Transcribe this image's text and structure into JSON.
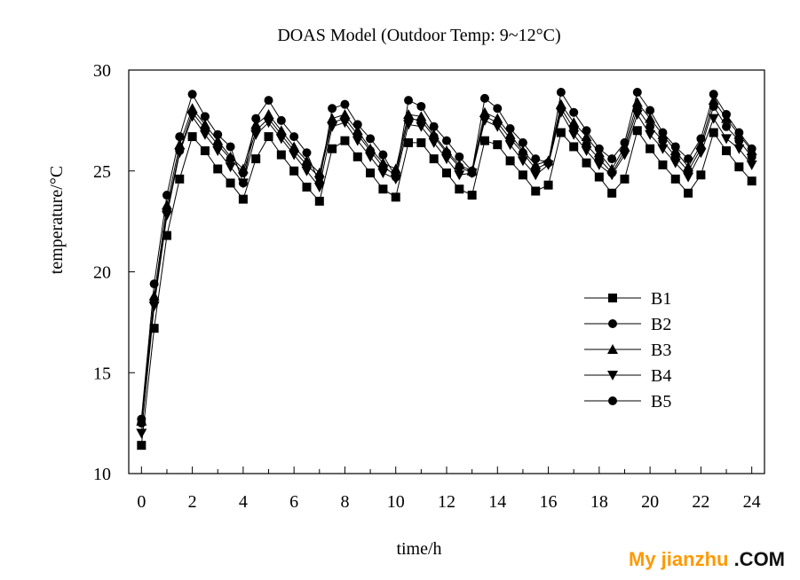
{
  "chart_data": {
    "type": "line",
    "title": "DOAS Model (Outdoor Temp: 9~12°C)",
    "xlabel": "time/h",
    "ylabel": "temperature/°C",
    "xlim": [
      -0.5,
      24.5
    ],
    "ylim": [
      10,
      30
    ],
    "xticks": [
      0,
      2,
      4,
      6,
      8,
      10,
      12,
      14,
      16,
      18,
      20,
      22,
      24
    ],
    "yticks": [
      10,
      15,
      20,
      25,
      30
    ],
    "legend_position": "center-right",
    "x": [
      0,
      0.5,
      1,
      1.5,
      2,
      2.5,
      3,
      3.5,
      4,
      4.5,
      5,
      5.5,
      6,
      6.5,
      7,
      7.5,
      8,
      8.5,
      9,
      9.5,
      10,
      10.5,
      11,
      11.5,
      12,
      12.5,
      13,
      13.5,
      14,
      14.5,
      15,
      15.5,
      16,
      16.5,
      17,
      17.5,
      18,
      18.5,
      19,
      19.5,
      20,
      20.5,
      21,
      21.5,
      22,
      22.5,
      23,
      23.5,
      24
    ],
    "series": [
      {
        "name": "B1",
        "marker": "square",
        "values": [
          11.4,
          17.2,
          21.8,
          24.6,
          26.7,
          26.0,
          25.1,
          24.4,
          23.6,
          25.6,
          26.7,
          25.8,
          25.0,
          24.2,
          23.5,
          26.1,
          26.5,
          25.7,
          24.9,
          24.1,
          23.7,
          26.4,
          26.4,
          25.6,
          24.9,
          24.1,
          23.8,
          26.5,
          26.3,
          25.5,
          24.8,
          24.0,
          24.3,
          26.9,
          26.2,
          25.4,
          24.7,
          23.9,
          24.6,
          27.0,
          26.1,
          25.3,
          24.6,
          23.9,
          24.8,
          26.9,
          26.0,
          25.2,
          24.5
        ]
      },
      {
        "name": "B2",
        "marker": "circle",
        "values": [
          12.7,
          19.4,
          23.8,
          26.7,
          28.8,
          27.7,
          26.8,
          26.2,
          24.4,
          27.6,
          28.5,
          27.5,
          26.7,
          25.9,
          24.4,
          28.1,
          28.3,
          27.3,
          26.6,
          25.8,
          24.7,
          28.5,
          28.2,
          27.2,
          26.5,
          25.7,
          25.0,
          28.6,
          28.1,
          27.1,
          26.4,
          25.6,
          25.4,
          28.9,
          27.9,
          27.0,
          26.1,
          25.6,
          26.4,
          28.9,
          28.0,
          26.9,
          26.2,
          25.6,
          26.6,
          28.8,
          27.8,
          26.9,
          26.1
        ]
      },
      {
        "name": "B3",
        "marker": "triangle-up",
        "values": [
          12.6,
          18.8,
          23.3,
          26.3,
          28.1,
          27.3,
          26.5,
          25.7,
          25.1,
          27.3,
          27.8,
          27.0,
          26.2,
          25.5,
          24.9,
          27.6,
          27.8,
          27.0,
          26.1,
          25.4,
          25.1,
          27.8,
          27.7,
          26.8,
          26.0,
          25.3,
          25.0,
          27.9,
          27.6,
          26.8,
          26.0,
          25.3,
          25.5,
          28.3,
          27.4,
          26.7,
          25.9,
          25.1,
          26.2,
          28.4,
          27.6,
          26.8,
          26.0,
          25.2,
          26.3,
          28.5,
          27.6,
          26.8,
          26.0
        ]
      },
      {
        "name": "B4",
        "marker": "triangle-down",
        "values": [
          12.0,
          18.3,
          22.8,
          25.9,
          27.7,
          26.8,
          26.0,
          25.2,
          24.4,
          26.8,
          27.4,
          26.6,
          25.8,
          25.0,
          24.2,
          27.2,
          27.4,
          26.5,
          25.7,
          24.9,
          24.6,
          27.3,
          27.2,
          26.4,
          25.6,
          24.8,
          24.9,
          27.5,
          27.2,
          26.3,
          25.5,
          24.8,
          25.3,
          27.9,
          26.8,
          26.0,
          25.3,
          24.8,
          25.8,
          27.8,
          26.8,
          26.1,
          25.4,
          24.7,
          25.9,
          27.6,
          26.6,
          26.1,
          25.3
        ]
      },
      {
        "name": "B5",
        "marker": "circle",
        "values": [
          12.5,
          18.5,
          23.0,
          26.0,
          27.9,
          27.1,
          26.3,
          25.6,
          24.9,
          27.0,
          27.6,
          26.8,
          26.0,
          25.3,
          24.7,
          27.4,
          27.6,
          26.8,
          26.0,
          25.2,
          24.8,
          27.6,
          27.5,
          26.7,
          25.9,
          25.2,
          24.9,
          27.7,
          27.4,
          26.6,
          25.9,
          25.1,
          25.4,
          28.1,
          27.1,
          26.3,
          25.6,
          24.9,
          26.0,
          28.1,
          27.2,
          26.5,
          25.7,
          25.0,
          26.1,
          28.2,
          27.2,
          26.5,
          25.7
        ]
      }
    ]
  },
  "watermark": {
    "part1": "My jianzhu",
    "part2": " .COM"
  },
  "colors": {
    "line": "#000000",
    "marker": "#000000",
    "background": "#ffffff",
    "watermark_accent": "#ff9900"
  }
}
